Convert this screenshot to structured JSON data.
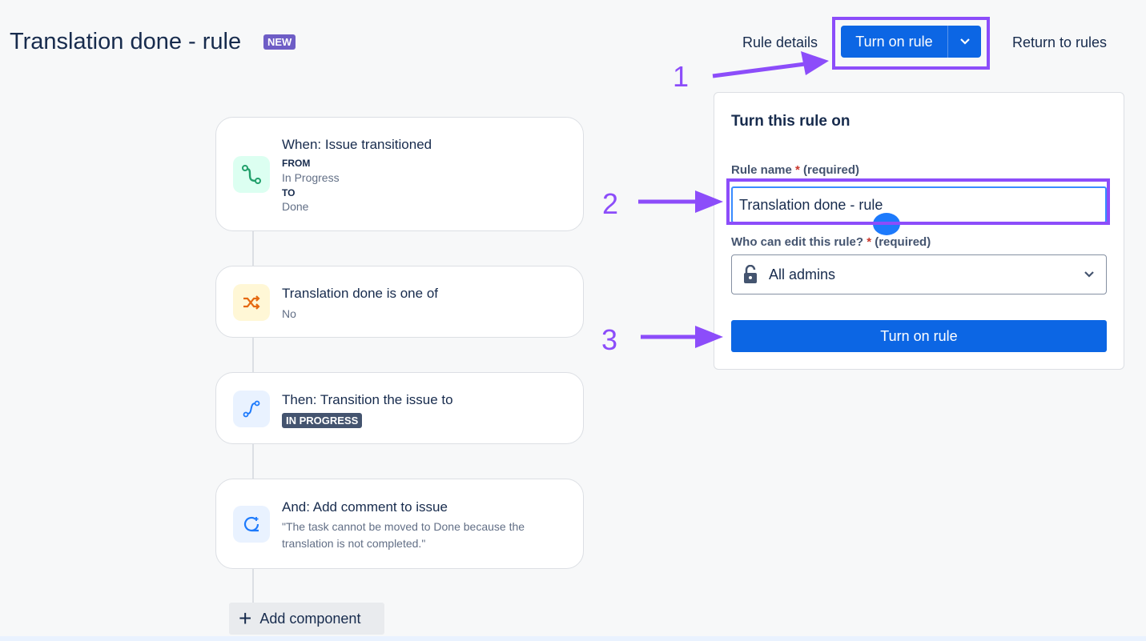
{
  "header": {
    "title": "Translation done - rule",
    "badge": "NEW",
    "rule_details": "Rule details",
    "turn_on": "Turn on rule",
    "return": "Return to rules"
  },
  "cards": [
    {
      "title": "When: Issue transitioned",
      "from_label": "FROM",
      "from": "In Progress",
      "to_label": "TO",
      "to": "Done",
      "icon": "transition-icon",
      "color": "#22a06b"
    },
    {
      "title": "Translation done is one of",
      "value": "No",
      "icon": "shuffle-icon",
      "color": "#e56910"
    },
    {
      "title": "Then: Transition the issue to",
      "status": "IN PROGRESS",
      "icon": "transition-icon",
      "color": "#1d7afc"
    },
    {
      "title": "And: Add comment to issue",
      "value": "\"The task cannot be moved to Done because the translation is not completed.\"",
      "icon": "comment-icon",
      "color": "#1d7afc"
    }
  ],
  "add_component": "Add component",
  "panel": {
    "title": "Turn this rule on",
    "rule_name_label": "Rule name",
    "required_mark": "*",
    "required": "(required)",
    "rule_name_value": "Translation done - rule",
    "editor_label": "Who can edit this rule?",
    "editor_value": "All admins",
    "submit": "Turn on rule"
  },
  "annotations": {
    "n1": "1",
    "n2": "2",
    "n3": "3",
    "color": "#8c4dfa"
  }
}
